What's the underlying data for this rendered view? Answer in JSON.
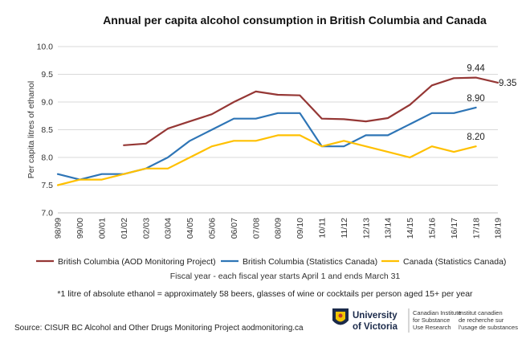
{
  "chart_data": {
    "type": "line",
    "title": "Annual per capita alcohol consumption in British Columbia and Canada",
    "ylabel": "Per capita litres of ethanol",
    "xlabel": "Fiscal year - each fiscal year starts April 1 and ends March 31",
    "ylim": [
      7.0,
      10.0
    ],
    "yticks": [
      "7.0",
      "7.5",
      "8.0",
      "8.5",
      "9.0",
      "9.5",
      "10.0"
    ],
    "grid": true,
    "categories": [
      "98/99",
      "99/00",
      "00/01",
      "01/02",
      "02/03",
      "03/04",
      "04/05",
      "05/06",
      "06/07",
      "07/08",
      "08/09",
      "09/10",
      "10/11",
      "11/12",
      "12/13",
      "13/14",
      "14/15",
      "15/16",
      "16/17",
      "17/18",
      "18/19"
    ],
    "series": [
      {
        "name": "British Columbia (AOD Monitoring Project)",
        "color": "#953735",
        "values": [
          null,
          null,
          null,
          8.22,
          8.25,
          8.52,
          8.65,
          8.78,
          9.0,
          9.19,
          9.13,
          9.12,
          8.7,
          8.69,
          8.65,
          8.71,
          8.95,
          9.3,
          9.43,
          9.44,
          9.35
        ]
      },
      {
        "name": "British Columbia (Statistics Canada)",
        "color": "#2e75b6",
        "values": [
          7.7,
          7.6,
          7.7,
          7.7,
          7.8,
          8.0,
          8.3,
          8.5,
          8.7,
          8.7,
          8.8,
          8.8,
          8.2,
          8.2,
          8.4,
          8.4,
          8.6,
          8.8,
          8.8,
          8.9,
          null
        ]
      },
      {
        "name": "Canada (Statistics Canada)",
        "color": "#ffc000",
        "values": [
          7.5,
          7.6,
          7.6,
          7.7,
          7.8,
          7.8,
          8.0,
          8.2,
          8.3,
          8.3,
          8.4,
          8.4,
          8.2,
          8.3,
          8.2,
          8.1,
          8.0,
          8.2,
          8.1,
          8.2,
          null
        ]
      }
    ],
    "data_labels": [
      {
        "series": 0,
        "index": 19,
        "text": "9.44"
      },
      {
        "series": 0,
        "index": 20,
        "text": "9.35"
      },
      {
        "series": 1,
        "index": 19,
        "text": "8.90"
      },
      {
        "series": 2,
        "index": 19,
        "text": "8.20"
      }
    ],
    "legend_position": "bottom"
  },
  "footnote": "*1 litre of absolute ethanol = approximately 58 beers, glasses of wine or cocktails per person aged 15+ per year",
  "source": "Source: CISUR BC Alcohol and Other Drugs Monitoring Project    aodmonitoring.ca",
  "logo": {
    "university_line1": "University",
    "university_line2": "of Victoria",
    "institute_en": [
      "Canadian Institute",
      "for Substance",
      "Use Research"
    ],
    "institute_fr": [
      "Institut canadien",
      "de recherche sur",
      "l'usage de substances"
    ]
  }
}
